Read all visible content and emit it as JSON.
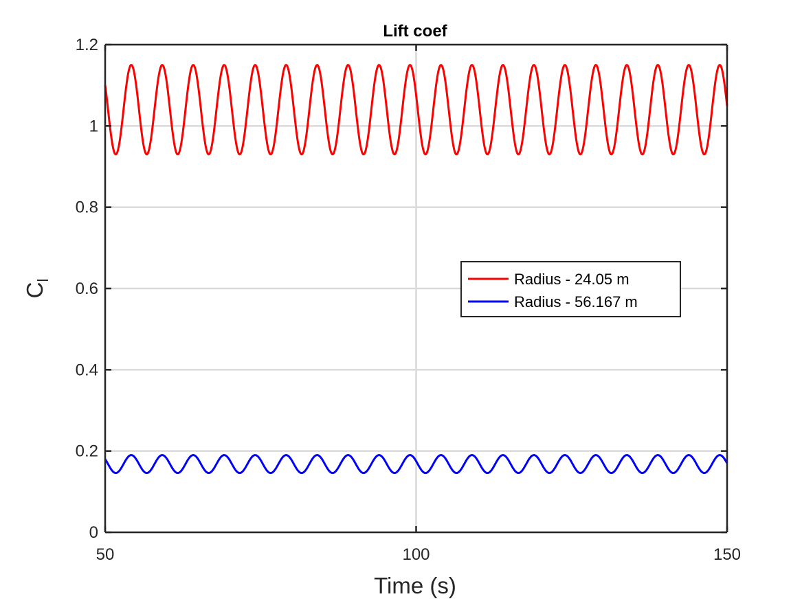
{
  "chart_data": {
    "type": "line",
    "title": "Lift coef",
    "xlabel": "Time (s)",
    "ylabel_main": "C",
    "ylabel_sub": "l",
    "xlim": [
      50,
      150
    ],
    "ylim": [
      0,
      1.2
    ],
    "xticks": [
      50,
      100,
      150
    ],
    "xtick_labels": [
      "50",
      "100",
      "150"
    ],
    "yticks": [
      0,
      0.2,
      0.4,
      0.6,
      0.8,
      1.0,
      1.2
    ],
    "ytick_labels": [
      "0",
      "0.2",
      "0.4",
      "0.6",
      "0.8",
      "1",
      "1.2"
    ],
    "grid": true,
    "legend_position": "center-right",
    "series": [
      {
        "name": "Radius - 24.05 m",
        "color": "#ff0000",
        "form": "sinusoid",
        "mean": 1.04,
        "amplitude": 0.11,
        "period": 4.98,
        "phase_time": 54.2,
        "x_start": 50,
        "x_end": 150
      },
      {
        "name": "Radius - 56.167 m",
        "color": "#0000ff",
        "form": "sinusoid",
        "mean": 0.168,
        "amplitude": 0.022,
        "period": 4.98,
        "phase_time": 54.2,
        "x_start": 50,
        "x_end": 150
      }
    ]
  }
}
